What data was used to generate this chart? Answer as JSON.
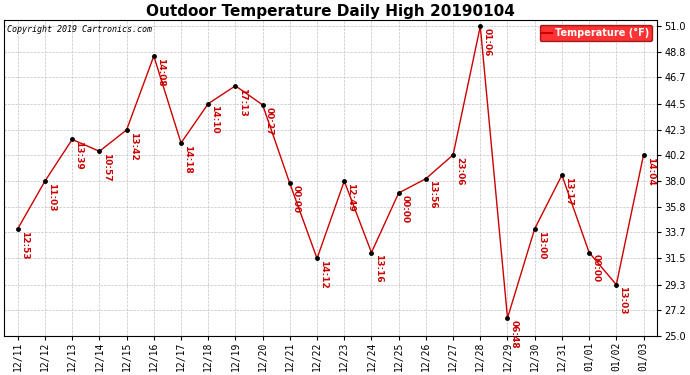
{
  "title": "Outdoor Temperature Daily High 20190104",
  "copyright": "Copyright 2019 Cartronics.com",
  "legend_label": "Temperature (°F)",
  "x_labels": [
    "12/11",
    "12/12",
    "12/13",
    "12/14",
    "12/15",
    "12/16",
    "12/17",
    "12/18",
    "12/19",
    "12/20",
    "12/21",
    "12/22",
    "12/23",
    "12/24",
    "12/25",
    "12/26",
    "12/27",
    "12/28",
    "12/29",
    "12/30",
    "12/31",
    "01/01",
    "01/02",
    "01/03"
  ],
  "temperatures": [
    34.0,
    38.0,
    41.5,
    40.5,
    42.3,
    48.5,
    41.2,
    44.5,
    46.0,
    44.4,
    37.8,
    31.5,
    38.0,
    32.0,
    37.0,
    38.2,
    40.2,
    51.0,
    26.5,
    34.0,
    38.5,
    32.0,
    29.3,
    40.2
  ],
  "time_labels": [
    "12:53",
    "11:03",
    "13:39",
    "10:57",
    "13:42",
    "14:08",
    "14:18",
    "14:10",
    "17:13",
    "00:27",
    "00:00",
    "14:12",
    "12:49",
    "13:16",
    "00:00",
    "13:56",
    "23:06",
    "01:06",
    "06:48",
    "13:00",
    "13:17",
    "00:00",
    "13:03",
    "14:04"
  ],
  "ylim": [
    25.0,
    51.5
  ],
  "yticks": [
    25.0,
    27.2,
    29.3,
    31.5,
    33.7,
    35.8,
    38.0,
    40.2,
    42.3,
    44.5,
    46.7,
    48.8,
    51.0
  ],
  "line_color": "#cc0000",
  "marker_color": "#000000",
  "label_color": "#cc0000",
  "bg_color": "#ffffff",
  "grid_color": "#bbbbbb",
  "title_fontsize": 11,
  "tick_fontsize": 7,
  "label_fontsize": 6.5,
  "copyright_fontsize": 6
}
